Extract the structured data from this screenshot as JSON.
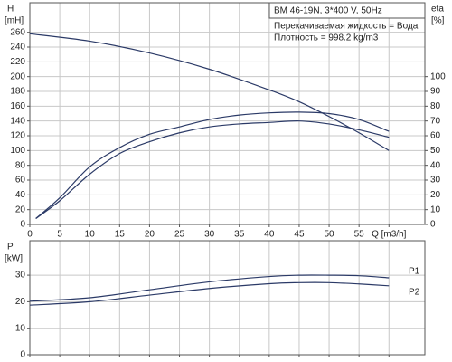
{
  "chart_data": [
    {
      "type": "line",
      "info": [
        "BM 46-19N, 3*400 V, 50Hz",
        "Перекачиваемая жидкость = Вода",
        "Плотность = 998.2 kg/m3"
      ],
      "ylabel": "H",
      "yunit": "[mH]",
      "y2label": "eta",
      "y2unit": "[%]",
      "xlim": [
        0,
        66
      ],
      "xticks": [
        0,
        5,
        10,
        15,
        20,
        25,
        30,
        35,
        40,
        45,
        50,
        55,
        {
          "value": 60,
          "label": "Q [m3/h]"
        }
      ],
      "ylim": [
        0,
        300
      ],
      "yticks": [
        0,
        20,
        40,
        60,
        80,
        100,
        120,
        140,
        160,
        180,
        200,
        220,
        240,
        260
      ],
      "y2lim": [
        0,
        150
      ],
      "y2ticks": [
        0,
        10,
        20,
        30,
        40,
        50,
        60,
        70,
        80,
        90,
        100
      ],
      "grid": true,
      "show_xtick_labels": true,
      "series": [
        {
          "color": "#2b3a67",
          "x": [
            0,
            10,
            20,
            30,
            40,
            45,
            50,
            55,
            60
          ],
          "values": [
            258,
            248,
            232,
            210,
            182,
            166,
            146,
            124,
            100
          ]
        },
        {
          "color": "#2b3a67",
          "axis": "y2",
          "x": [
            1,
            5,
            10,
            15,
            20,
            25,
            30,
            35,
            40,
            45,
            50,
            55,
            60
          ],
          "values": [
            4,
            18,
            39,
            52,
            61,
            66,
            71,
            74,
            75.5,
            76,
            75,
            71,
            63
          ]
        },
        {
          "color": "#2b3a67",
          "axis": "y2",
          "x": [
            1,
            5,
            10,
            15,
            20,
            25,
            30,
            35,
            40,
            45,
            50,
            55,
            60
          ],
          "values": [
            4,
            16,
            34,
            48,
            56,
            62,
            66,
            68,
            69,
            70,
            68,
            64,
            59
          ]
        }
      ]
    },
    {
      "type": "line",
      "ylabel": "P",
      "yunit": "[kW]",
      "xlim": [
        0,
        66
      ],
      "xticks": [
        0,
        5,
        10,
        15,
        20,
        25,
        30,
        35,
        40,
        45,
        50,
        55,
        60
      ],
      "ylim": [
        0,
        43
      ],
      "yticks": [
        0,
        10,
        20,
        30
      ],
      "grid": true,
      "show_xtick_labels": false,
      "series": [
        {
          "name": "P1",
          "color": "#2b3a67",
          "x": [
            0,
            10,
            20,
            30,
            40,
            45,
            50,
            55,
            60
          ],
          "values": [
            20.2,
            21.5,
            24.5,
            27.5,
            29.5,
            30,
            30,
            29.8,
            29
          ]
        },
        {
          "name": "P2",
          "color": "#2b3a67",
          "x": [
            0,
            10,
            20,
            30,
            40,
            45,
            50,
            55,
            60
          ],
          "values": [
            18.7,
            20,
            22.5,
            25,
            26.8,
            27.2,
            27.2,
            26.7,
            26
          ]
        }
      ]
    }
  ]
}
